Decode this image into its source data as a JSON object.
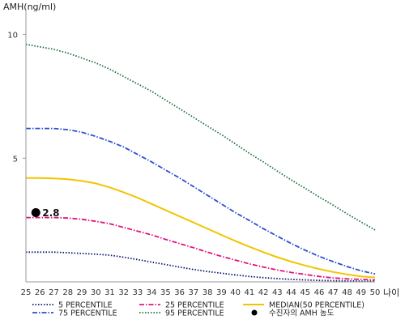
{
  "chart_data": {
    "type": "line",
    "ylabel": "AMH(ng/ml)",
    "xlabel": "나이",
    "x": [
      25,
      26,
      27,
      28,
      29,
      30,
      31,
      32,
      33,
      34,
      35,
      36,
      37,
      38,
      39,
      40,
      41,
      42,
      43,
      44,
      45,
      46,
      47,
      48,
      49,
      50
    ],
    "xlim": [
      25,
      50
    ],
    "ylim": [
      0,
      11
    ],
    "yticks": [
      5,
      10
    ],
    "grid": false,
    "legend_position": "bottom",
    "series": [
      {
        "name": "5 PERCENTILE",
        "color": "#0a1570",
        "dash": "dot",
        "values": [
          1.2,
          1.2,
          1.2,
          1.18,
          1.15,
          1.12,
          1.08,
          1.0,
          0.9,
          0.8,
          0.7,
          0.6,
          0.5,
          0.42,
          0.35,
          0.28,
          0.22,
          0.17,
          0.13,
          0.1,
          0.08,
          0.06,
          0.05,
          0.04,
          0.03,
          0.03
        ]
      },
      {
        "name": "25 PERCENTILE",
        "color": "#e0137e",
        "dash": "dashdot",
        "values": [
          2.6,
          2.6,
          2.6,
          2.58,
          2.53,
          2.45,
          2.35,
          2.2,
          2.05,
          1.9,
          1.72,
          1.55,
          1.38,
          1.2,
          1.03,
          0.88,
          0.73,
          0.6,
          0.48,
          0.38,
          0.3,
          0.22,
          0.16,
          0.12,
          0.1,
          0.08
        ]
      },
      {
        "name": "MEDIAN(50 PERCENTILE)",
        "color": "#f2c500",
        "dash": "solid",
        "values": [
          4.2,
          4.2,
          4.18,
          4.15,
          4.08,
          3.98,
          3.82,
          3.62,
          3.4,
          3.15,
          2.9,
          2.65,
          2.4,
          2.15,
          1.9,
          1.65,
          1.42,
          1.2,
          1.0,
          0.82,
          0.66,
          0.52,
          0.4,
          0.3,
          0.22,
          0.18
        ]
      },
      {
        "name": "75 PERCENTILE",
        "color": "#2a4fcf",
        "dash": "dashdot",
        "values": [
          6.2,
          6.2,
          6.2,
          6.15,
          6.05,
          5.88,
          5.68,
          5.45,
          5.15,
          4.85,
          4.52,
          4.2,
          3.85,
          3.5,
          3.15,
          2.8,
          2.48,
          2.15,
          1.85,
          1.55,
          1.28,
          1.03,
          0.82,
          0.62,
          0.45,
          0.32
        ]
      },
      {
        "name": "95 PERCENTILE",
        "color": "#1e6e3e",
        "dash": "dot",
        "values": [
          9.6,
          9.5,
          9.4,
          9.25,
          9.05,
          8.85,
          8.6,
          8.3,
          8.0,
          7.7,
          7.35,
          7.0,
          6.65,
          6.3,
          5.95,
          5.58,
          5.2,
          4.85,
          4.48,
          4.12,
          3.78,
          3.43,
          3.1,
          2.75,
          2.42,
          2.1
        ]
      }
    ],
    "highlight": {
      "name": "수진자의 AMH 농도",
      "x": 26,
      "y": 2.8,
      "label": "2.8",
      "color": "#000000"
    }
  }
}
